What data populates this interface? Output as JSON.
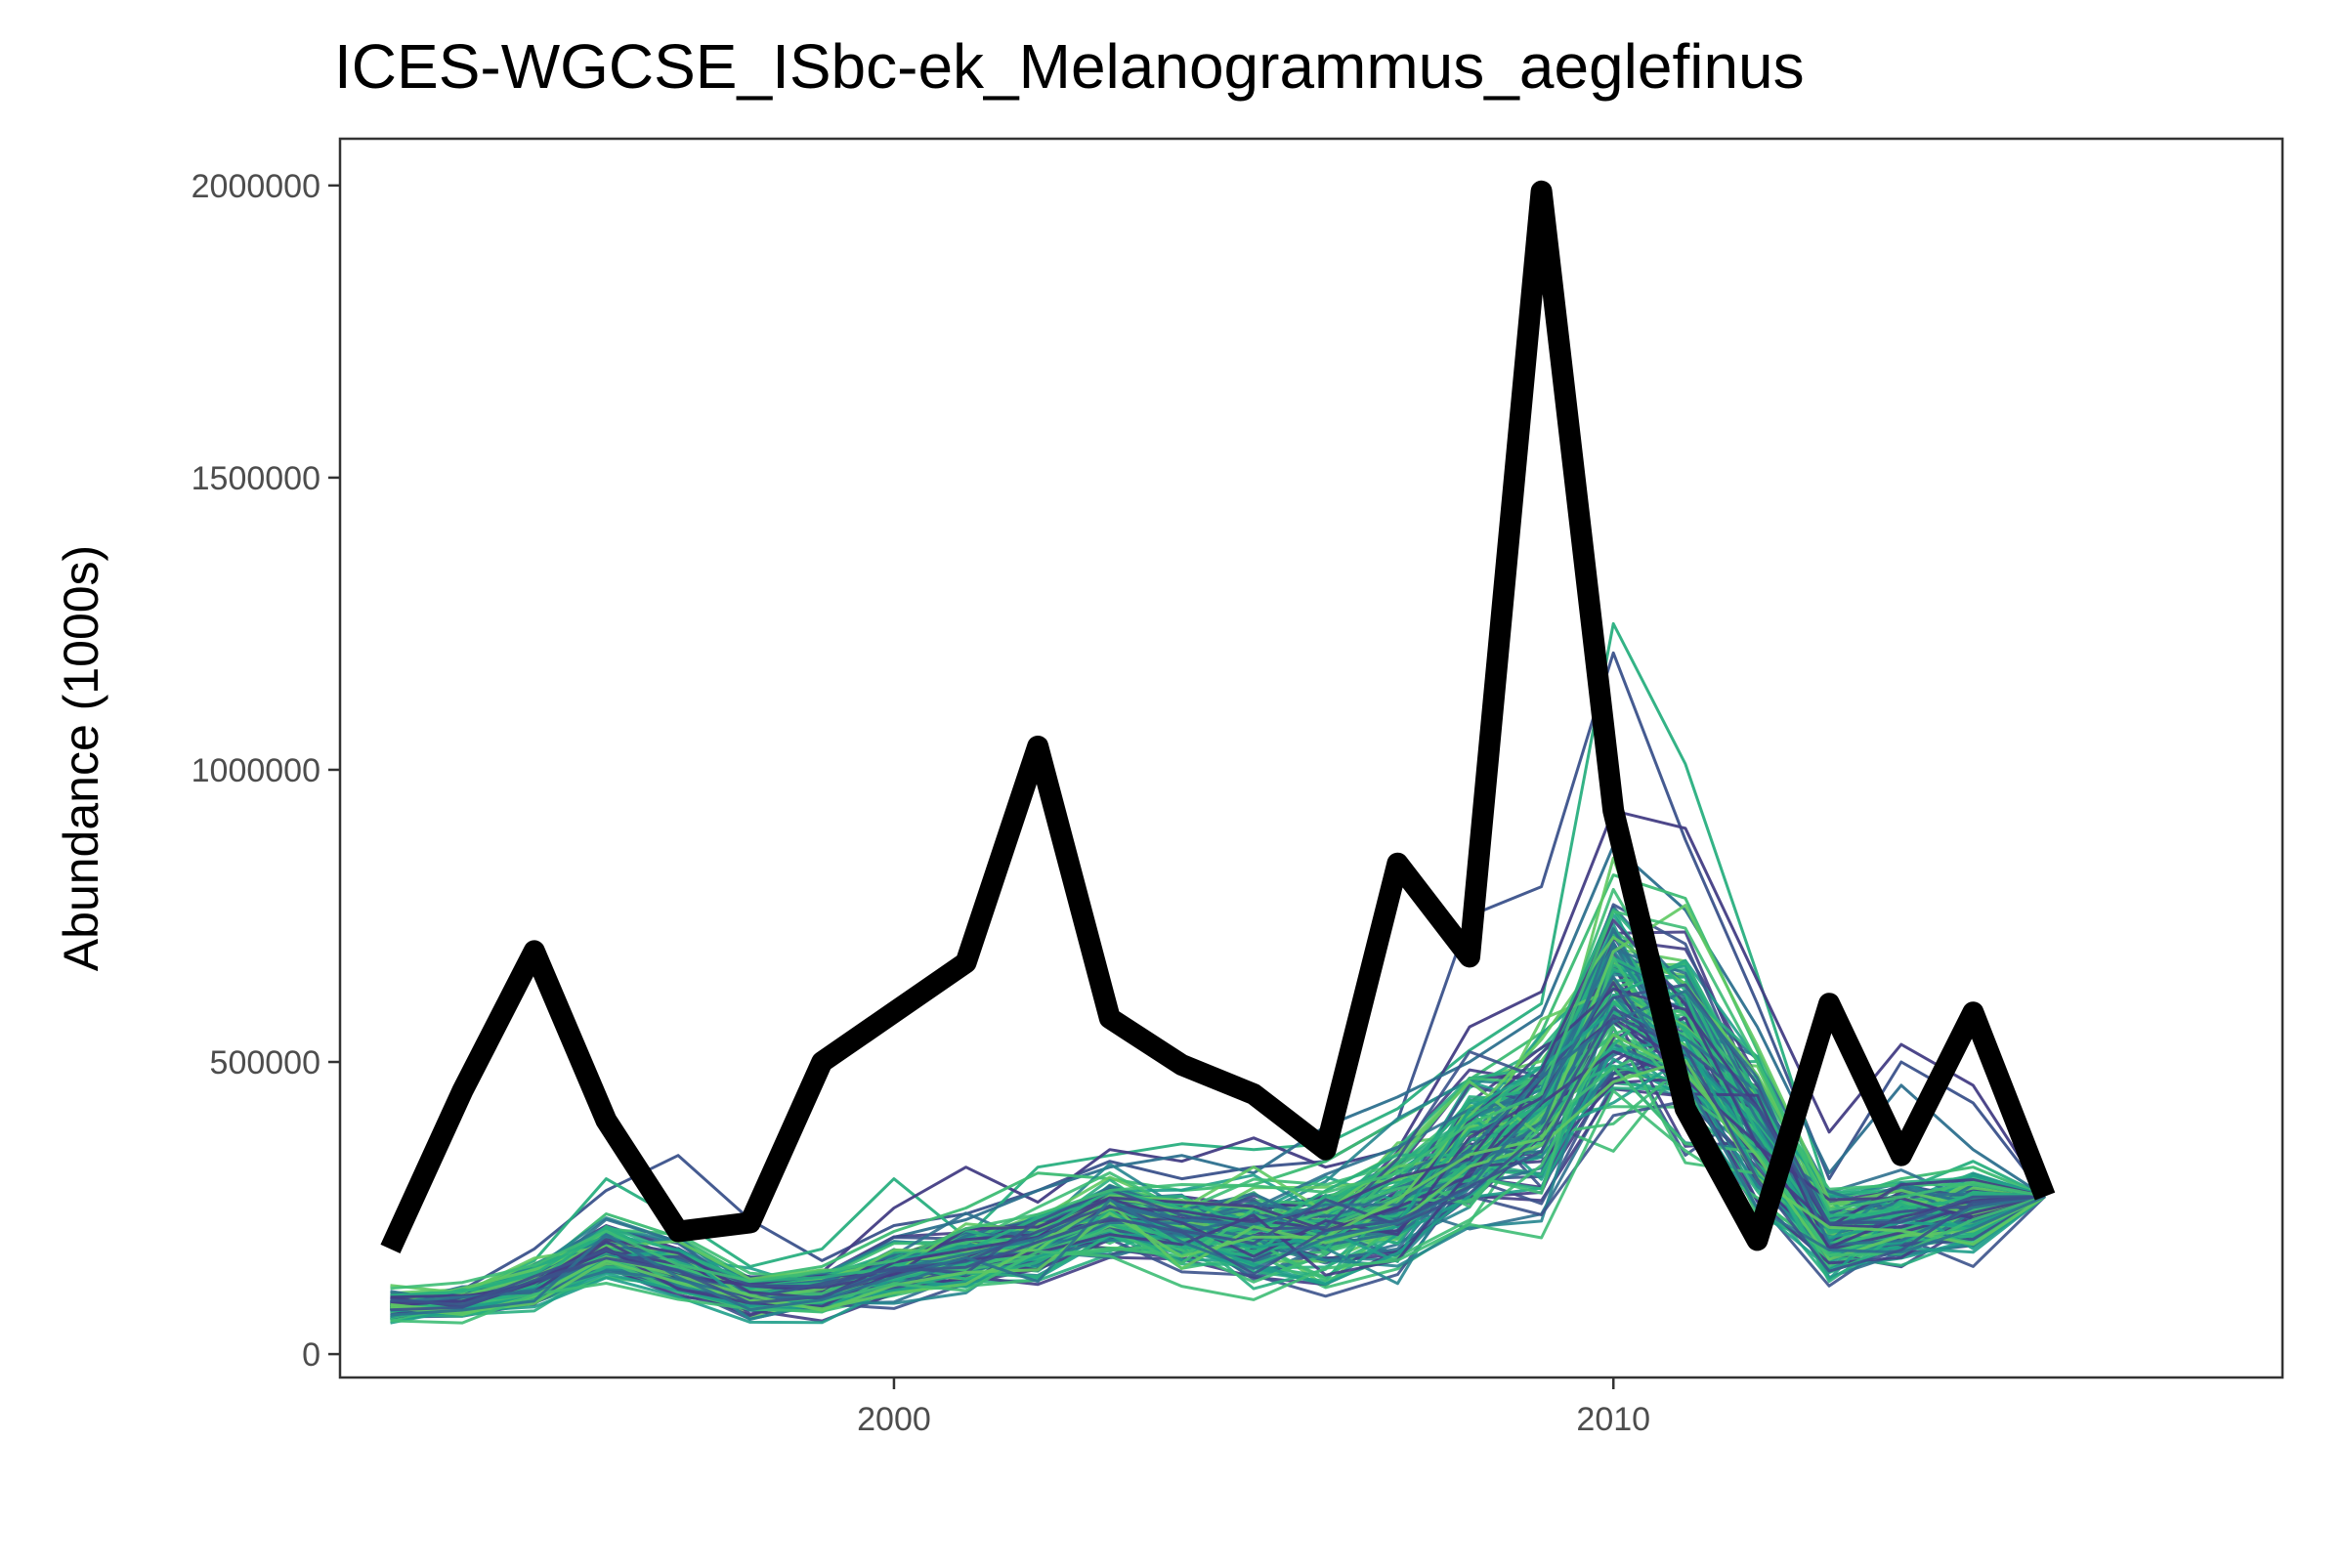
{
  "chart_data": {
    "type": "line",
    "title": "ICES-WGCSE_ISbc-ek_Melanogrammus_aeglefinus",
    "xlabel": "",
    "ylabel": "Abundance (1000s)",
    "xlim": [
      1992.3,
      2019.3
    ],
    "ylim": [
      -40000,
      2080000
    ],
    "x_ticks": [
      2000,
      2010
    ],
    "y_ticks": [
      0,
      500000,
      1000000,
      1500000,
      2000000
    ],
    "y_tick_labels": [
      "0",
      "500000",
      "1000000",
      "1500000",
      "2000000"
    ],
    "grid": false,
    "legend": "none",
    "colors": {
      "observed": "#000000",
      "panel_border": "#333333",
      "ensemble_palette": [
        "#433d84",
        "#3b528b",
        "#2d708e",
        "#25858e",
        "#1f9e89",
        "#29af7f",
        "#3dbc74",
        "#5ec962"
      ]
    },
    "observed": {
      "x": [
        1993,
        1994,
        1995,
        1996,
        1997,
        1998,
        1999,
        2000,
        2001,
        2002,
        2003,
        2004,
        2005,
        2006,
        2007,
        2008,
        2009,
        2010,
        2011,
        2012,
        2013,
        2014,
        2015,
        2016
      ],
      "y": [
        180000,
        450000,
        690000,
        400000,
        210000,
        225000,
        500000,
        585000,
        670000,
        1040000,
        575000,
        495000,
        445000,
        350000,
        840000,
        680000,
        1990000,
        930000,
        420000,
        195000,
        600000,
        340000,
        585000,
        270000
      ]
    },
    "ensemble": {
      "x": [
        1993,
        1994,
        1995,
        1996,
        1997,
        1998,
        1999,
        2000,
        2001,
        2002,
        2003,
        2004,
        2005,
        2006,
        2007,
        2008,
        2009,
        2010,
        2011,
        2012,
        2013,
        2014,
        2015,
        2016
      ],
      "n_runs": 140,
      "central": [
        82000,
        90000,
        120000,
        175000,
        148000,
        100000,
        108000,
        140000,
        165000,
        190000,
        238000,
        210000,
        205000,
        210000,
        250000,
        355000,
        400000,
        610000,
        530000,
        380000,
        200000,
        230000,
        240000,
        270000
      ],
      "spread": [
        15000,
        15000,
        22000,
        28000,
        28000,
        22000,
        22000,
        28000,
        32000,
        38000,
        42000,
        42000,
        48000,
        52000,
        62000,
        80000,
        95000,
        120000,
        110000,
        80000,
        48000,
        42000,
        42000,
        0
      ],
      "outlier_runs": [
        {
          "color": "#3b528b",
          "y": [
            95000,
            110000,
            180000,
            280000,
            340000,
            230000,
            160000,
            220000,
            240000,
            280000,
            330000,
            300000,
            320000,
            330000,
            400000,
            750000,
            800000,
            1200000,
            880000,
            600000,
            300000,
            500000,
            430000,
            270000
          ]
        },
        {
          "color": "#29af7f",
          "y": [
            90000,
            105000,
            160000,
            300000,
            230000,
            150000,
            180000,
            300000,
            200000,
            320000,
            340000,
            360000,
            350000,
            360000,
            420000,
            520000,
            600000,
            1250000,
            1010000,
            650000,
            270000,
            280000,
            330000,
            270000
          ]
        },
        {
          "color": "#433d84",
          "y": [
            85000,
            100000,
            150000,
            220000,
            180000,
            120000,
            140000,
            250000,
            320000,
            260000,
            350000,
            330000,
            370000,
            320000,
            350000,
            560000,
            620000,
            930000,
            900000,
            640000,
            380000,
            530000,
            460000,
            270000
          ]
        },
        {
          "color": "#2d708e",
          "y": [
            80000,
            95000,
            130000,
            200000,
            160000,
            110000,
            130000,
            200000,
            230000,
            280000,
            320000,
            340000,
            310000,
            390000,
            440000,
            500000,
            580000,
            870000,
            760000,
            560000,
            310000,
            460000,
            350000,
            270000
          ]
        },
        {
          "color": "#3dbc74",
          "y": [
            88000,
            102000,
            140000,
            240000,
            200000,
            130000,
            150000,
            210000,
            250000,
            310000,
            300000,
            280000,
            290000,
            330000,
            400000,
            470000,
            550000,
            820000,
            780000,
            520000,
            260000,
            300000,
            320000,
            270000
          ]
        }
      ]
    }
  }
}
